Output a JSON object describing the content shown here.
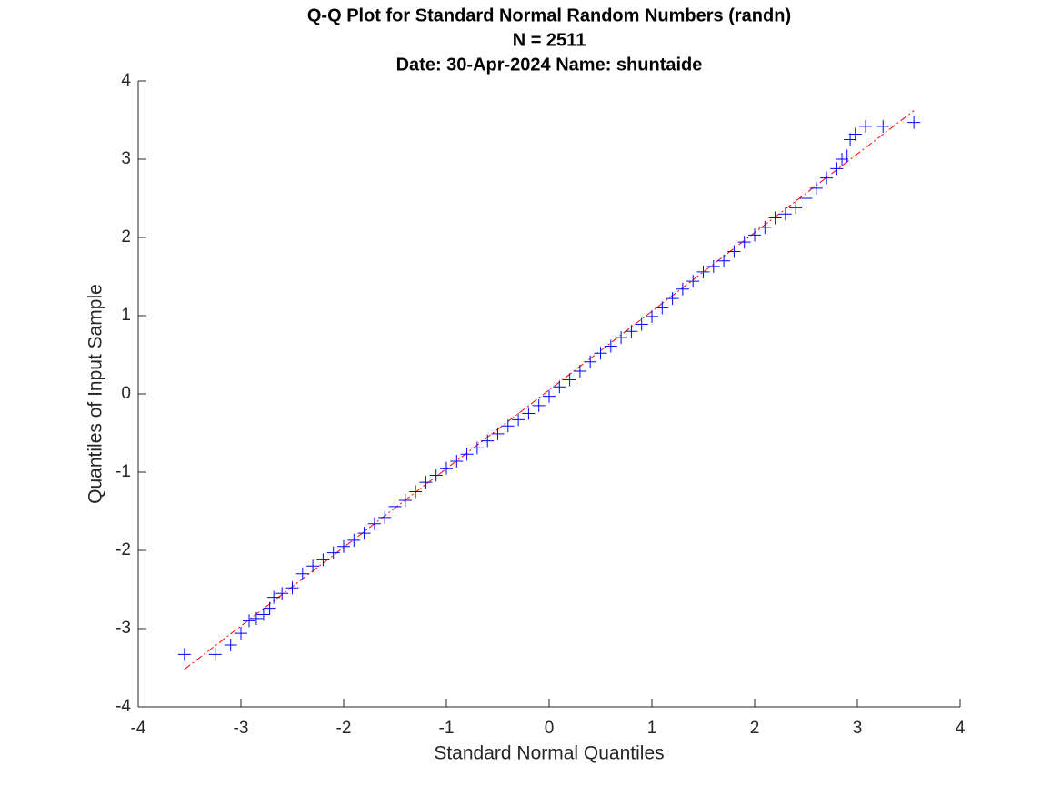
{
  "chart_data": {
    "type": "scatter",
    "title": [
      "Q-Q Plot for Standard Normal Random Numbers (randn)",
      "N = 2511",
      "Date: 30-Apr-2024 Name: shuntaide"
    ],
    "x_label": "Standard Normal Quantiles",
    "y_label": "Quantiles of Input Sample",
    "xlim": [
      -4,
      4
    ],
    "ylim": [
      -4,
      4
    ],
    "xticks": [
      -4,
      -3,
      -2,
      -1,
      0,
      1,
      2,
      3,
      4
    ],
    "yticks": [
      -4,
      -3,
      -2,
      -1,
      0,
      1,
      2,
      3,
      4
    ],
    "grid": false,
    "series": [
      {
        "color": "#0000ff",
        "marker": "+",
        "x": [
          -3.55,
          -3.25,
          -3.1,
          -3.0,
          -2.92,
          -2.85,
          -2.78,
          -2.72,
          -2.68,
          -2.6,
          -2.5,
          -2.4,
          -2.3,
          -2.2,
          -2.1,
          -2.0,
          -1.9,
          -1.8,
          -1.7,
          -1.6,
          -1.5,
          -1.4,
          -1.3,
          -1.2,
          -1.1,
          -1.0,
          -0.9,
          -0.8,
          -0.7,
          -0.6,
          -0.5,
          -0.4,
          -0.3,
          -0.2,
          -0.1,
          0,
          0.1,
          0.2,
          0.3,
          0.4,
          0.5,
          0.6,
          0.7,
          0.8,
          0.9,
          1.0,
          1.1,
          1.2,
          1.3,
          1.4,
          1.5,
          1.6,
          1.7,
          1.8,
          1.9,
          2.0,
          2.1,
          2.2,
          2.3,
          2.4,
          2.5,
          2.6,
          2.7,
          2.8,
          2.85,
          2.9,
          2.93,
          2.98,
          3.08,
          3.25,
          3.55
        ],
        "values": [
          -3.33,
          -3.33,
          -3.21,
          -3.06,
          -2.9,
          -2.87,
          -2.82,
          -2.74,
          -2.6,
          -2.55,
          -2.48,
          -2.3,
          -2.2,
          -2.12,
          -2.03,
          -1.95,
          -1.87,
          -1.78,
          -1.66,
          -1.58,
          -1.44,
          -1.36,
          -1.25,
          -1.13,
          -1.04,
          -0.95,
          -0.86,
          -0.77,
          -0.69,
          -0.6,
          -0.51,
          -0.41,
          -0.33,
          -0.25,
          -0.15,
          -0.03,
          0.09,
          0.18,
          0.29,
          0.41,
          0.52,
          0.61,
          0.72,
          0.8,
          0.89,
          0.99,
          1.1,
          1.22,
          1.34,
          1.44,
          1.56,
          1.63,
          1.7,
          1.82,
          1.94,
          2.03,
          2.13,
          2.25,
          2.3,
          2.38,
          2.5,
          2.63,
          2.76,
          2.88,
          3.0,
          3.04,
          3.25,
          3.32,
          3.42,
          3.42,
          3.47
        ]
      }
    ],
    "reference_line": {
      "color": "#ff0000",
      "style": "dash-dot",
      "x": [
        -3.55,
        3.55
      ],
      "values": [
        -3.52,
        3.62
      ]
    }
  }
}
